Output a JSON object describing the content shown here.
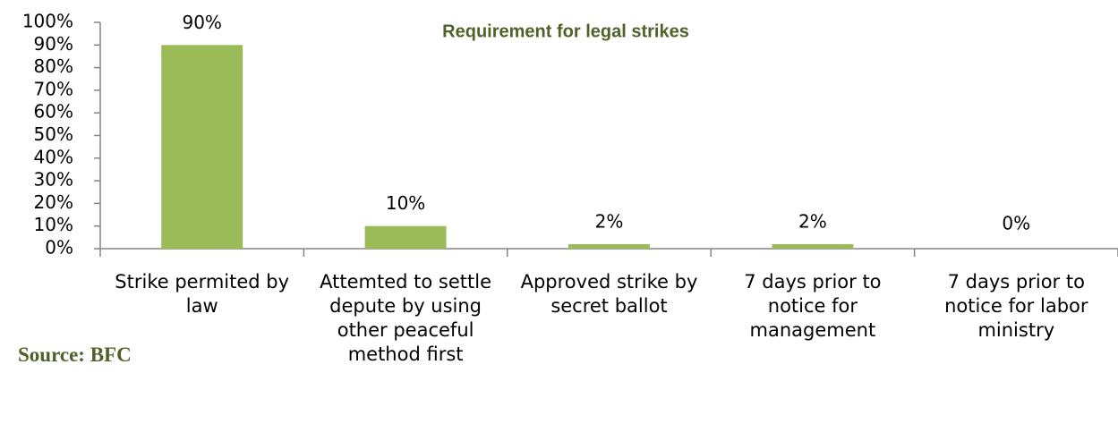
{
  "chart_data": {
    "type": "bar",
    "title": "Requirement for legal strikes",
    "annotation": "Source: BFC",
    "categories": [
      "Strike permited by law",
      "Attemted to settle depute by using other peaceful method first",
      "Approved strike by secret ballot",
      "7 days prior to notice for management",
      "7 days prior to notice for labor ministry"
    ],
    "values": [
      90,
      10,
      2,
      2,
      0
    ],
    "value_labels": [
      "90%",
      "10%",
      "2%",
      "2%",
      "0%"
    ],
    "color": "#9bbb59",
    "ylim": [
      0,
      100
    ],
    "yticks": [
      {
        "value": 0,
        "label": "0%"
      },
      {
        "value": 10,
        "label": "10%"
      },
      {
        "value": 20,
        "label": "20%"
      },
      {
        "value": 30,
        "label": "30%"
      },
      {
        "value": 40,
        "label": "40%"
      },
      {
        "value": 50,
        "label": "50%"
      },
      {
        "value": 60,
        "label": "60%"
      },
      {
        "value": 70,
        "label": "70%"
      },
      {
        "value": 80,
        "label": "80%"
      },
      {
        "value": 90,
        "label": "90%"
      },
      {
        "value": 100,
        "label": "100%"
      }
    ],
    "grid": false
  }
}
